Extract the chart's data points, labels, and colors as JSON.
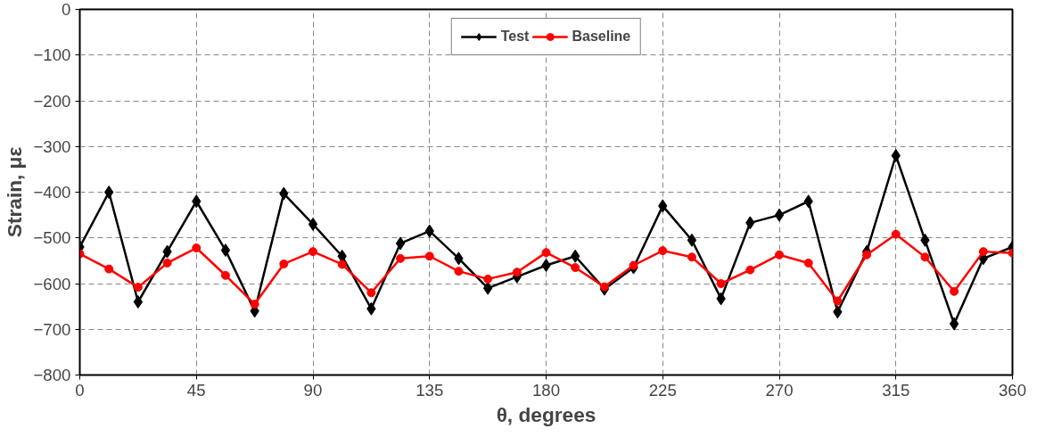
{
  "chart_data": {
    "type": "line",
    "xlabel": "θ, degrees",
    "ylabel": "Strain, με",
    "x": [
      0,
      11.25,
      22.5,
      33.75,
      45,
      56.25,
      67.5,
      78.75,
      90,
      101.25,
      112.5,
      123.75,
      135,
      146.25,
      157.5,
      168.75,
      180,
      191.25,
      202.5,
      213.75,
      225,
      236.25,
      247.5,
      258.75,
      270,
      281.25,
      292.5,
      303.75,
      315,
      326.25,
      337.5,
      348.75,
      360
    ],
    "series": [
      {
        "name": "Test",
        "color": "#000000",
        "marker": "diamond",
        "values": [
          -520,
          -400,
          -640,
          -530,
          -420,
          -527,
          -660,
          -403,
          -470,
          -540,
          -655,
          -512,
          -485,
          -545,
          -610,
          -585,
          -560,
          -540,
          -612,
          -565,
          -430,
          -505,
          -633,
          -467,
          -450,
          -420,
          -662,
          -530,
          -320,
          -505,
          -688,
          -545,
          -520
        ]
      },
      {
        "name": "Baseline",
        "color": "#ff0000",
        "marker": "circle",
        "values": [
          -535,
          -568,
          -608,
          -555,
          -522,
          -582,
          -645,
          -557,
          -530,
          -558,
          -620,
          -545,
          -540,
          -573,
          -590,
          -575,
          -532,
          -565,
          -607,
          -560,
          -528,
          -542,
          -600,
          -570,
          -537,
          -555,
          -638,
          -537,
          -492,
          -542,
          -617,
          -530,
          -533
        ]
      }
    ],
    "xlim": [
      0,
      360
    ],
    "xticks": [
      0,
      45,
      90,
      135,
      180,
      225,
      270,
      315,
      360
    ],
    "ylim": [
      -800,
      0
    ],
    "yticks": [
      -800,
      -700,
      -600,
      -500,
      -400,
      -300,
      -200,
      -100,
      0
    ],
    "grid": true,
    "legend": "top",
    "line_style": "solid"
  }
}
